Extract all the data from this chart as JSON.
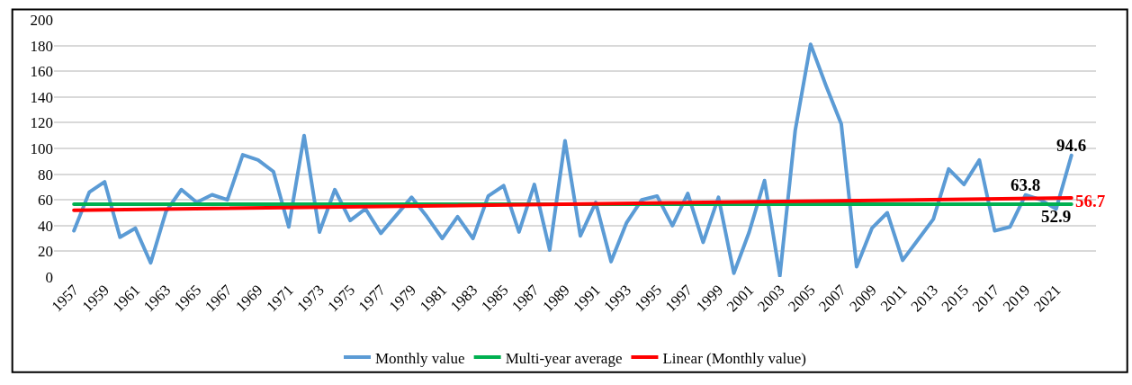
{
  "chart_data": {
    "type": "line",
    "categories": [
      "1957",
      null,
      "1959",
      null,
      "1961",
      null,
      "1963",
      null,
      "1965",
      null,
      "1967",
      null,
      "1969",
      null,
      "1971",
      null,
      "1973",
      null,
      "1975",
      null,
      "1977",
      null,
      "1979",
      null,
      "1981",
      null,
      "1983",
      null,
      "1985",
      null,
      "1987",
      null,
      "1989",
      null,
      "1991",
      null,
      "1993",
      null,
      "1995",
      null,
      "1997",
      null,
      "1999",
      null,
      "2001",
      null,
      "2003",
      null,
      "2005",
      null,
      "2007",
      null,
      "2009",
      null,
      "2011",
      null,
      "2013",
      null,
      "2015",
      null,
      "2017",
      null,
      "2019",
      null,
      "2021",
      null
    ],
    "series": [
      {
        "name": "Monthly value",
        "color": "#5b9bd5",
        "values": [
          36,
          66,
          74,
          31,
          38,
          11,
          51,
          68,
          58,
          64,
          60,
          95,
          91,
          82,
          39,
          110,
          35,
          68,
          44,
          53,
          34,
          48,
          62,
          47,
          30,
          47,
          30,
          63,
          71,
          35,
          72,
          21,
          106,
          32,
          58,
          12,
          42,
          60,
          63,
          40,
          65,
          27,
          62,
          3,
          35,
          75,
          1,
          114,
          181,
          149,
          119,
          8,
          38,
          50,
          13,
          29,
          45,
          84,
          72,
          91,
          36,
          39,
          63.8,
          60,
          52.9,
          94.6
        ],
        "value_labels": [
          null,
          null,
          null,
          null,
          null,
          null,
          null,
          null,
          null,
          null,
          null,
          null,
          null,
          null,
          null,
          null,
          null,
          null,
          null,
          null,
          null,
          null,
          null,
          null,
          null,
          null,
          null,
          null,
          null,
          null,
          null,
          null,
          null,
          null,
          null,
          null,
          null,
          null,
          null,
          null,
          null,
          null,
          null,
          null,
          null,
          null,
          null,
          null,
          null,
          null,
          null,
          null,
          null,
          null,
          null,
          null,
          null,
          null,
          null,
          null,
          null,
          null,
          "63.8",
          null,
          "52.9",
          "94.6"
        ]
      },
      {
        "name": "Multi-year average",
        "color": "#00b050",
        "values": [
          56.7,
          null,
          null,
          null,
          null,
          null,
          null,
          null,
          null,
          null,
          null,
          null,
          null,
          null,
          null,
          null,
          null,
          null,
          null,
          null,
          null,
          null,
          null,
          null,
          null,
          null,
          null,
          null,
          null,
          null,
          null,
          null,
          null,
          null,
          null,
          null,
          null,
          null,
          null,
          null,
          null,
          null,
          null,
          null,
          null,
          null,
          null,
          null,
          null,
          null,
          null,
          null,
          null,
          null,
          null,
          null,
          null,
          null,
          null,
          null,
          null,
          null,
          null,
          null,
          null,
          56.7
        ]
      },
      {
        "name": "Linear (Monthly value)",
        "color": "#ff0000",
        "values": [
          52,
          null,
          null,
          null,
          null,
          null,
          null,
          null,
          null,
          null,
          null,
          null,
          null,
          null,
          null,
          null,
          null,
          null,
          null,
          null,
          null,
          null,
          null,
          null,
          null,
          null,
          null,
          null,
          null,
          null,
          null,
          null,
          null,
          null,
          null,
          null,
          null,
          null,
          null,
          null,
          null,
          null,
          null,
          null,
          null,
          null,
          null,
          null,
          null,
          null,
          null,
          null,
          null,
          null,
          null,
          null,
          null,
          null,
          null,
          null,
          null,
          null,
          null,
          null,
          null,
          61.5
        ]
      }
    ],
    "annotations": [
      "56.7"
    ],
    "ylim": [
      0,
      200
    ],
    "yticks": [
      0,
      20,
      40,
      60,
      80,
      100,
      120,
      140,
      160,
      180,
      200
    ],
    "grid": "y",
    "legend": "bottom",
    "marker": "none",
    "line_style": "solid"
  }
}
